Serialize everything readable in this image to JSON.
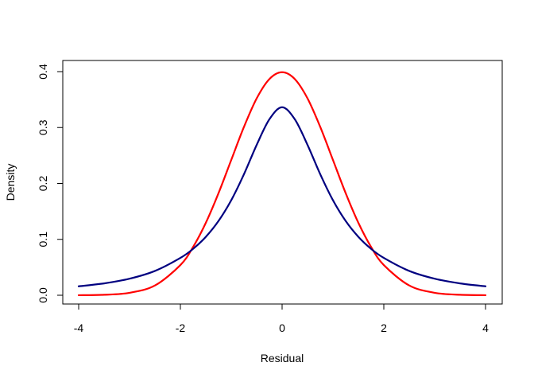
{
  "chart_data": {
    "type": "line",
    "title": "",
    "xlabel": "Residual",
    "ylabel": "Density",
    "xlim": [
      -4,
      4
    ],
    "ylim": [
      0,
      0.4
    ],
    "x_ticks": [
      -4,
      -2,
      0,
      2,
      4
    ],
    "x_tick_labels": [
      "-4",
      "-2",
      "0",
      "2",
      "4"
    ],
    "y_ticks": [
      0,
      0.1,
      0.2,
      0.3,
      0.4
    ],
    "y_tick_labels": [
      "0.0",
      "0.1",
      "0.2",
      "0.3",
      "0.4"
    ],
    "grid": false,
    "legend": "none",
    "x": [
      -4,
      -3.5,
      -3,
      -2.5,
      -2,
      -1.75,
      -1.5,
      -1.25,
      -1,
      -0.75,
      -0.5,
      -0.25,
      0,
      0.25,
      0.5,
      0.75,
      1,
      1.25,
      1.5,
      1.75,
      2,
      2.5,
      3,
      3.5,
      4
    ],
    "series": [
      {
        "color": "#ff0000",
        "values": [
          0.0001,
          0.0009,
          0.0044,
          0.0175,
          0.054,
          0.0863,
          0.1295,
          0.1826,
          0.242,
          0.3011,
          0.3521,
          0.3867,
          0.3989,
          0.3867,
          0.3521,
          0.3011,
          0.242,
          0.1826,
          0.1295,
          0.0863,
          0.054,
          0.0175,
          0.0044,
          0.0009,
          0.0001
        ]
      },
      {
        "color": "#000080",
        "values": [
          0.016,
          0.0212,
          0.0296,
          0.0435,
          0.0668,
          0.083,
          0.1045,
          0.1329,
          0.17,
          0.2165,
          0.2689,
          0.3147,
          0.3363,
          0.3147,
          0.2689,
          0.2165,
          0.17,
          0.1329,
          0.1045,
          0.083,
          0.0668,
          0.0435,
          0.0296,
          0.0212,
          0.016
        ]
      }
    ]
  }
}
